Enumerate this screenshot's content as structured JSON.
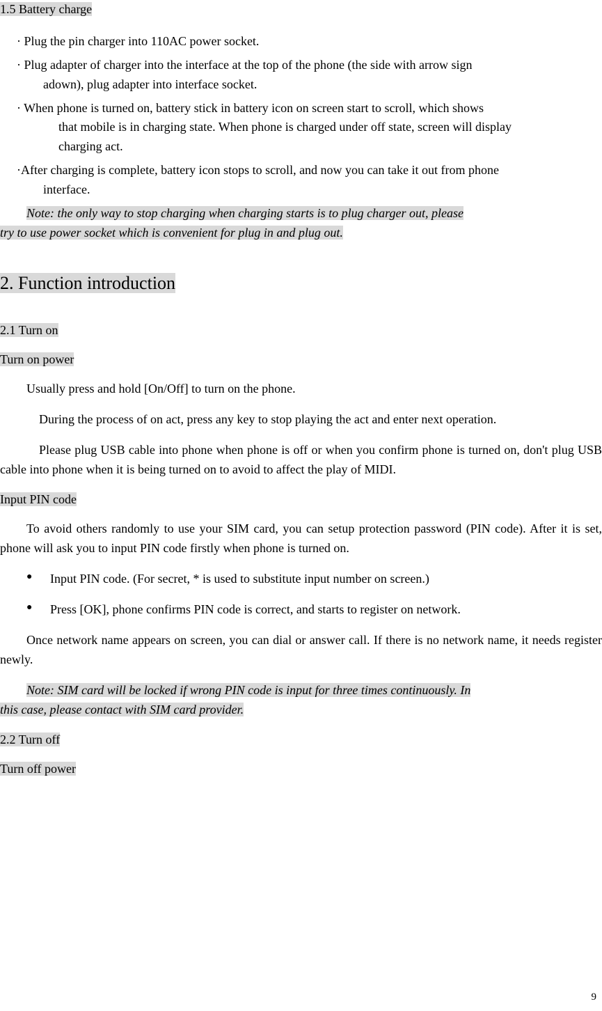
{
  "section_1_5": {
    "heading": "1.5 Battery charge",
    "items": [
      {
        "lead": "· Plug the pin charger into 110AC power socket.",
        "cont": []
      },
      {
        "lead": "· Plug adapter of charger into the interface at the top of the phone (the side with arrow sign",
        "cont": [
          "adown), plug adapter into interface socket."
        ]
      },
      {
        "lead": "· When phone is turned on, battery stick in battery icon on screen start to scroll, which shows",
        "cont": [
          "that mobile is in charging state. When phone is charged under off state, screen will display",
          "charging act."
        ]
      },
      {
        "lead": "·After charging is complete, battery icon stops to scroll, and now you can take it out from phone",
        "cont": [
          "interface."
        ]
      }
    ],
    "note_line1": "Note: the only way to stop charging when charging starts is to plug charger out, please",
    "note_line2": "try to use power socket which is convenient for plug in and plug out.  "
  },
  "section_2": {
    "heading": "2. Function introduction",
    "s2_1": {
      "heading": "2.1 Turn on",
      "sub1": {
        "heading": "Turn on power",
        "p1": "Usually press and hold [On/Off] to turn on the phone.",
        "p2": "During the process of on act, press any key to stop playing the act and enter next operation.",
        "p3": "Please plug USB cable into phone when phone is off or when you confirm phone is turned on, don't plug USB cable into phone when it is being turned on to avoid to affect the play of MIDI."
      },
      "sub2": {
        "heading": "Input PIN code",
        "p1": "To avoid others randomly to use your SIM card, you can setup protection password (PIN code). After it is set, phone will ask you to input PIN code firstly when phone is turned on.",
        "bullets": [
          "Input PIN code. (For secret, * is used to substitute input number on screen.)",
          "Press [OK], phone confirms PIN code is correct, and starts to register on network."
        ],
        "p2": "Once network name appears on screen, you can dial or answer call. If there is no network name, it needs register newly.",
        "note_line1": "Note: SIM card will be locked if wrong PIN code is input for three times continuously. In",
        "note_line2": "this case, please contact with SIM card provider."
      }
    },
    "s2_2": {
      "heading": "2.2 Turn off",
      "sub1": {
        "heading": "Turn off power"
      }
    }
  },
  "page_number": "9"
}
